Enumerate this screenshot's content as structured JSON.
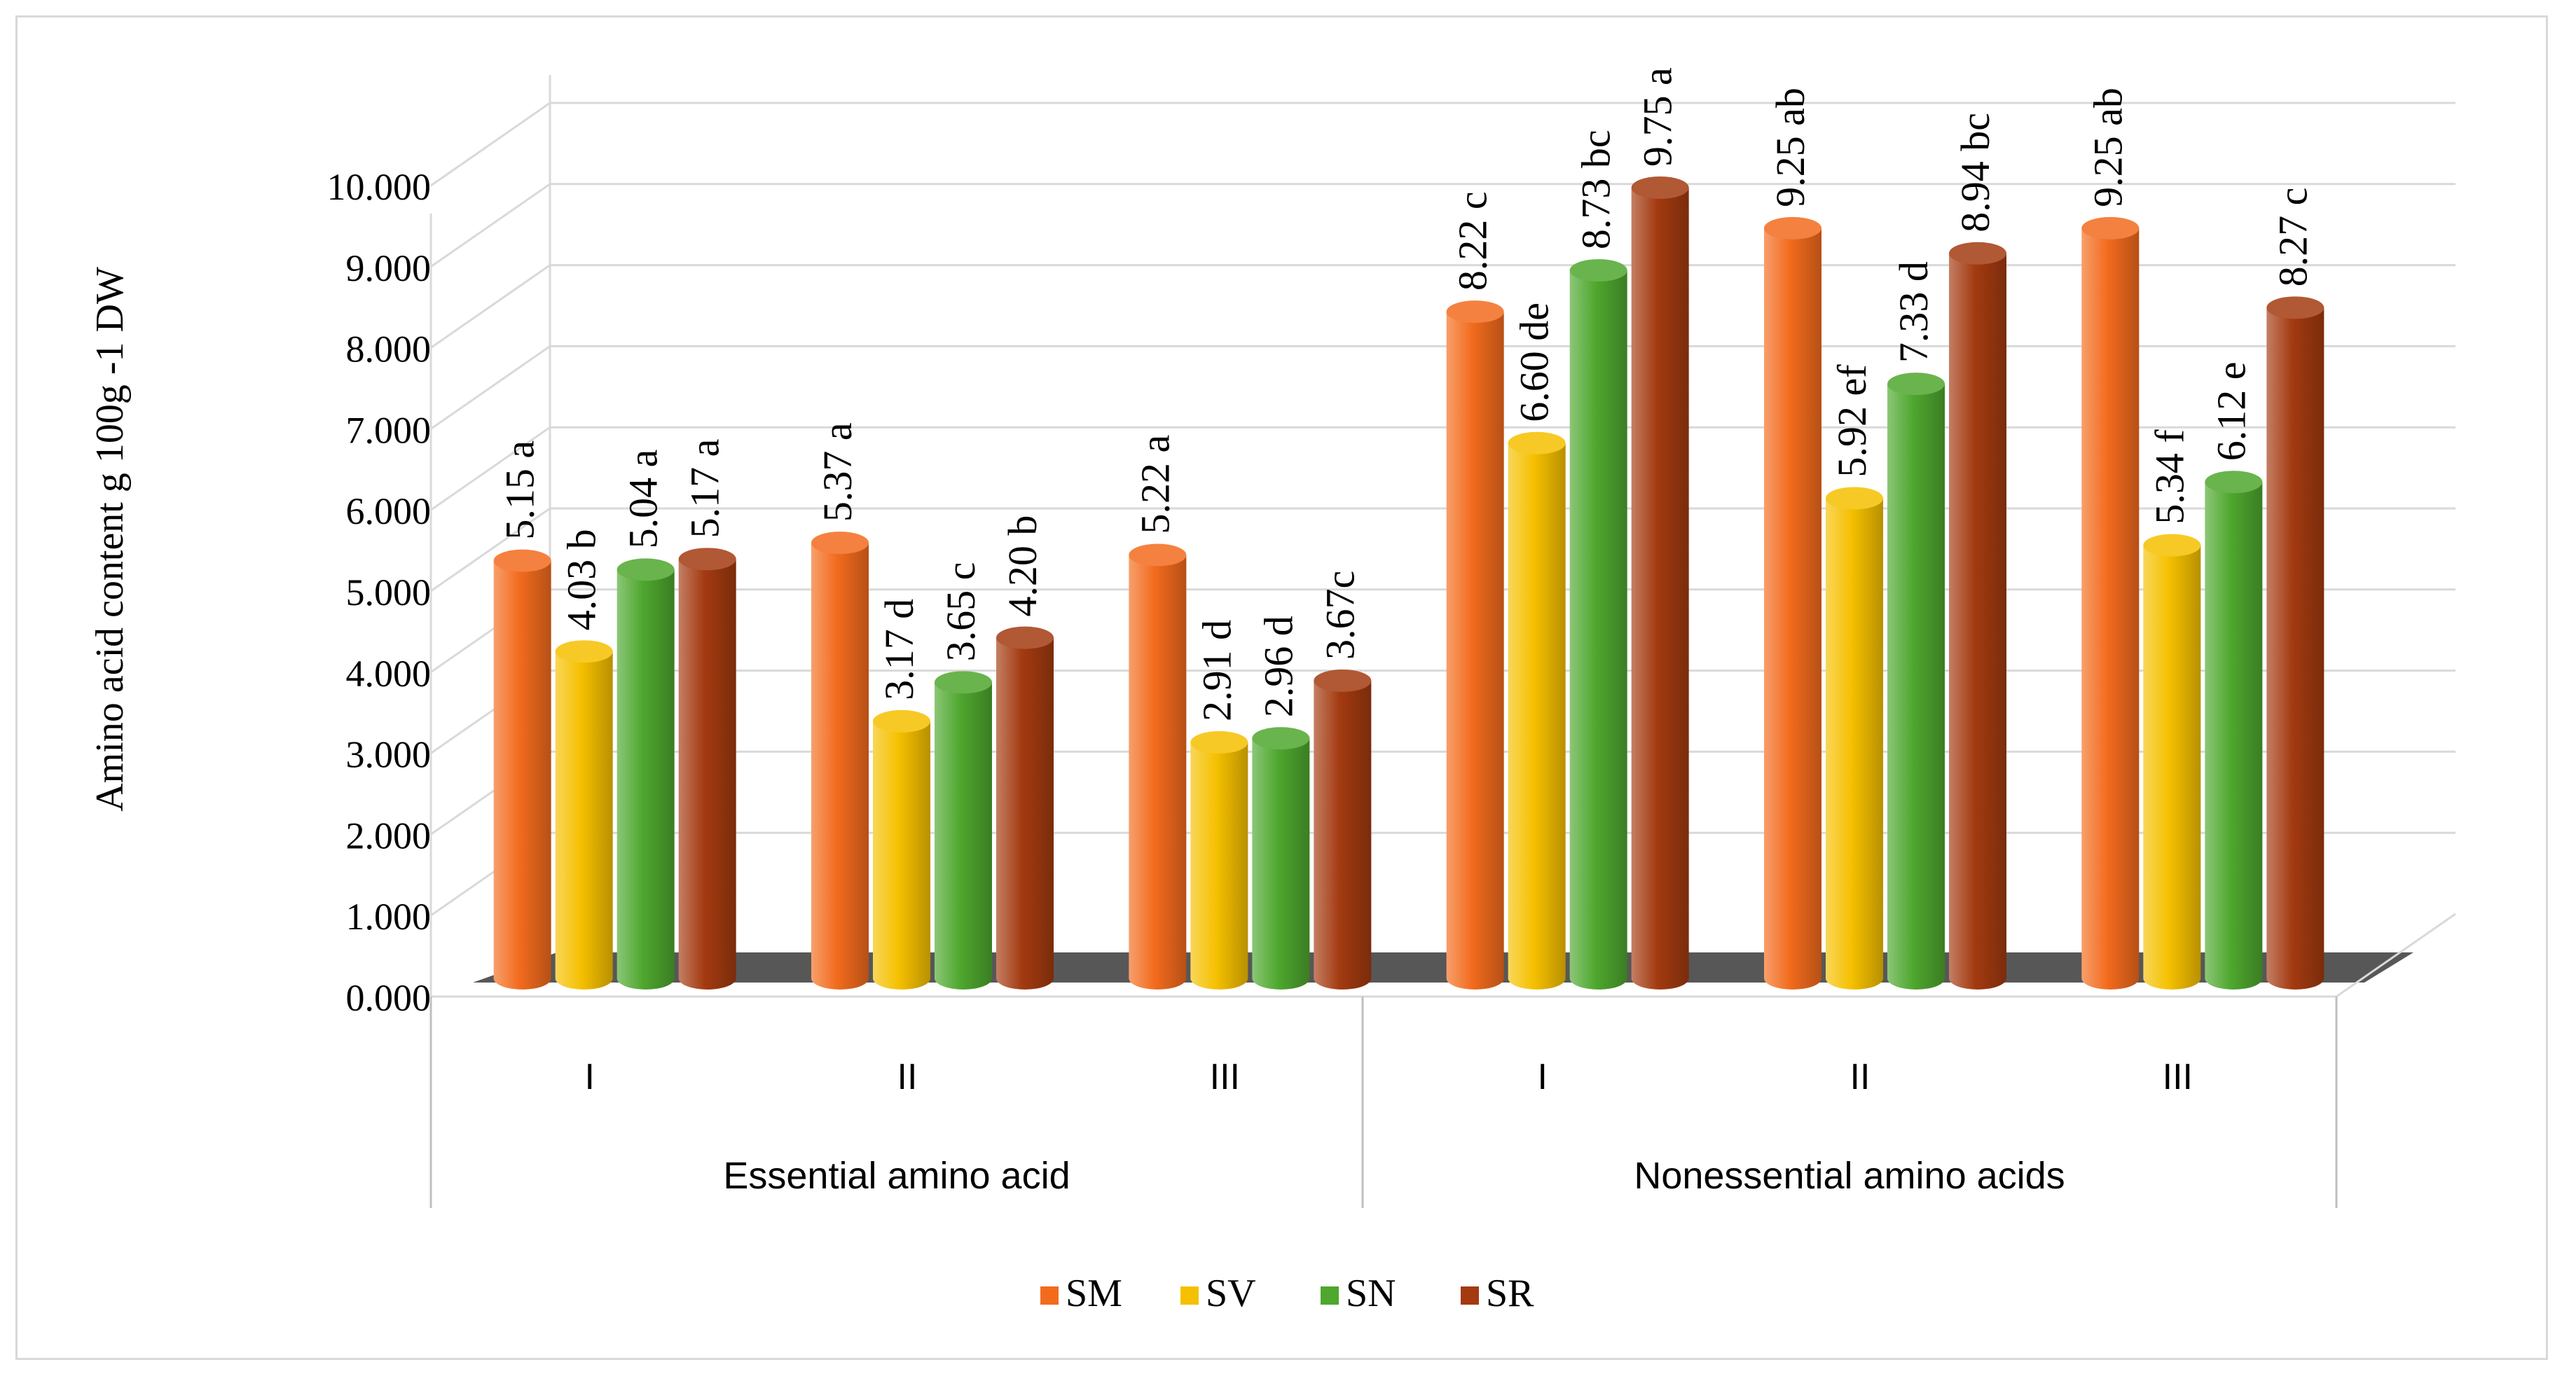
{
  "chart_data": {
    "type": "bar",
    "ylabel": "Amino acid content g 100g -1 DW",
    "ylim": [
      0,
      10
    ],
    "y_ticks": [
      "0.000",
      "1.000",
      "2.000",
      "3.000",
      "4.000",
      "5.000",
      "6.000",
      "7.000",
      "8.000",
      "9.000",
      "10.000"
    ],
    "groups": [
      {
        "name": "Essential amino acid",
        "categories": [
          "I",
          "II",
          "III"
        ]
      },
      {
        "name": "Nonessential amino acids",
        "categories": [
          "I",
          "II",
          "III"
        ]
      }
    ],
    "series": [
      {
        "name": "SM",
        "color": "#f26b1d",
        "values": [
          5.15,
          5.37,
          5.22,
          8.22,
          9.25,
          9.25
        ],
        "labels": [
          "5.15 a",
          "5.37 a",
          "5.22 a",
          "8.22 c",
          "9.25 ab",
          "9.25 ab"
        ]
      },
      {
        "name": "SV",
        "color": "#f5c000",
        "values": [
          4.03,
          3.17,
          2.91,
          6.6,
          5.92,
          5.34
        ],
        "labels": [
          "4.03 b",
          "3.17 d",
          "2.91 d",
          "6.60 de",
          "5.92 ef",
          "5.34 f"
        ]
      },
      {
        "name": "SN",
        "color": "#4ea72e",
        "values": [
          5.04,
          3.65,
          2.96,
          8.73,
          7.33,
          6.12
        ],
        "labels": [
          "5.04 a",
          "3.65 c",
          "2.96 d",
          "8.73 bc",
          "7.33 d",
          "6.12 e"
        ]
      },
      {
        "name": "SR",
        "color": "#a33a10",
        "values": [
          5.17,
          4.2,
          3.67,
          9.75,
          8.94,
          8.27
        ],
        "labels": [
          "5.17 a",
          "4.20 b",
          "3.67c",
          "9.75 a",
          "8.94 bc",
          "8.27 c"
        ]
      }
    ],
    "legend_position": "bottom",
    "grid": true
  }
}
